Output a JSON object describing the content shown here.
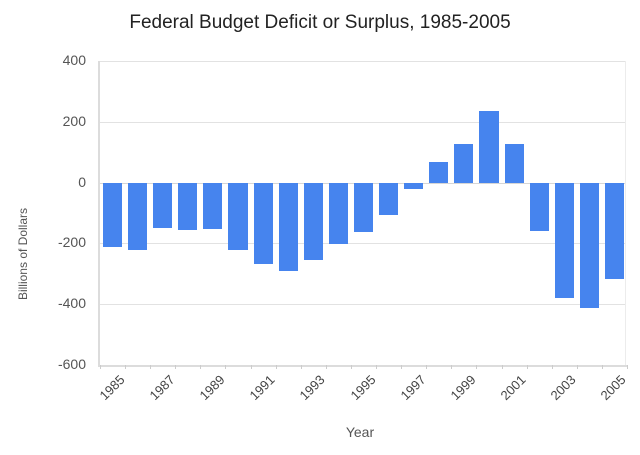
{
  "chart_data": {
    "type": "bar",
    "title": "Federal Budget Deficit or Surplus, 1985-2005",
    "xlabel": "Year",
    "ylabel": "Billions of Dollars",
    "ylim": [
      -600,
      400
    ],
    "yticks": [
      "400",
      "200",
      "0",
      "-200",
      "-400",
      "-600"
    ],
    "xtick_labels": [
      "1985",
      "1987",
      "1989",
      "1991",
      "1993",
      "1995",
      "1997",
      "1999",
      "2001",
      "2003",
      "2005"
    ],
    "grid": true,
    "legend": "none",
    "bar_color": "#4684ee",
    "categories": [
      "1985",
      "1986",
      "1987",
      "1988",
      "1989",
      "1990",
      "1991",
      "1992",
      "1993",
      "1994",
      "1995",
      "1996",
      "1997",
      "1998",
      "1999",
      "2000",
      "2001",
      "2002",
      "2003",
      "2004",
      "2005"
    ],
    "values": [
      -212,
      -221,
      -150,
      -155,
      -153,
      -221,
      -269,
      -290,
      -255,
      -203,
      -164,
      -107,
      -22,
      69,
      126,
      236,
      128,
      -158,
      -378,
      -413,
      -318
    ]
  }
}
